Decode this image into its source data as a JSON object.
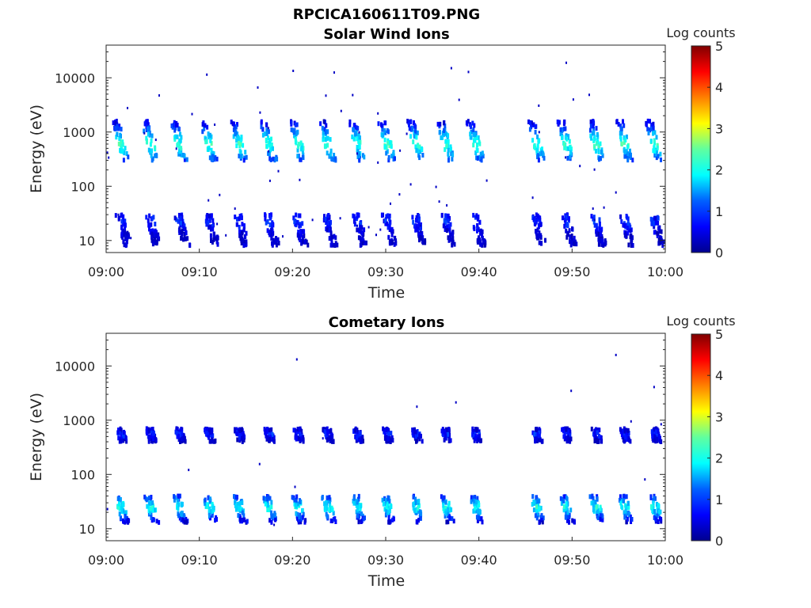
{
  "figure": {
    "title": "RPCICA160611T09.PNG"
  },
  "colorbar": {
    "label": "Log counts",
    "ticks": [
      "0",
      "1",
      "2",
      "3",
      "4",
      "5"
    ],
    "range": [
      0,
      5
    ],
    "colormap": [
      "#00008f",
      "#0000ff",
      "#0080ff",
      "#00ffff",
      "#80ff80",
      "#ffff00",
      "#ff8000",
      "#ff0000",
      "#800000"
    ]
  },
  "chart_data": [
    {
      "type": "heatmap",
      "title": "Solar Wind Ions",
      "xlabel": "Time",
      "ylabel": "Energy (eV)",
      "yscale": "log",
      "ylim": [
        6,
        40000
      ],
      "xlim": [
        "09:00",
        "10:00"
      ],
      "xticks": [
        "09:00",
        "09:10",
        "09:20",
        "09:30",
        "09:40",
        "09:50",
        "10:00"
      ],
      "yticks": [
        "10",
        "100",
        "1000",
        "10000"
      ],
      "colorbar_label": "Log counts",
      "clim": [
        0,
        5
      ],
      "data_gap": [
        "09:41",
        "09:45"
      ],
      "sweep_minutes": [
        1.5,
        4.7,
        7.8,
        11.0,
        14.2,
        17.4,
        20.5,
        23.7,
        26.9,
        30.1,
        33.2,
        36.4,
        39.6,
        46.1,
        49.3,
        52.5,
        55.6,
        58.8
      ],
      "populations": [
        {
          "name": "",
          "energy_center_eV": 600,
          "energy_span_eV": [
            300,
            1600
          ],
          "log_counts_peak": 2.2
        },
        {
          "name": "",
          "energy_center_eV": 22,
          "energy_span_eV": [
            8,
            30
          ],
          "log_counts_peak": 0.8
        }
      ]
    },
    {
      "type": "heatmap",
      "title": "Cometary Ions",
      "xlabel": "Time",
      "ylabel": "Energy (eV)",
      "yscale": "log",
      "ylim": [
        6,
        40000
      ],
      "xlim": [
        "09:00",
        "10:00"
      ],
      "xticks": [
        "09:00",
        "09:10",
        "09:20",
        "09:30",
        "09:40",
        "09:50",
        "10:00"
      ],
      "yticks": [
        "10",
        "100",
        "1000",
        "10000"
      ],
      "colorbar_label": "Log counts",
      "clim": [
        0,
        5
      ],
      "data_gap": [
        "09:41",
        "09:45"
      ],
      "sweep_minutes": [
        1.5,
        4.7,
        7.8,
        11.0,
        14.2,
        17.4,
        20.5,
        23.7,
        26.9,
        30.1,
        33.2,
        36.4,
        39.6,
        46.1,
        49.3,
        52.5,
        55.6,
        58.8
      ],
      "populations": [
        {
          "name": "",
          "energy_center_eV": 550,
          "energy_span_eV": [
            400,
            700
          ],
          "log_counts_peak": 0.8
        },
        {
          "name": "",
          "energy_center_eV": 25,
          "energy_span_eV": [
            13,
            40
          ],
          "log_counts_peak": 2.0
        }
      ]
    }
  ]
}
